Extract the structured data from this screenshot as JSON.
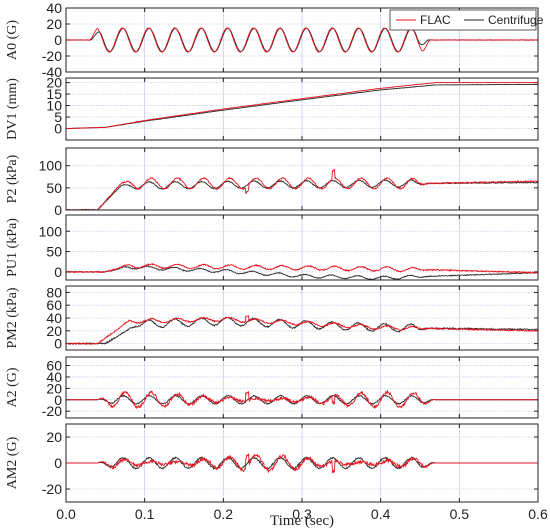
{
  "chart_data": {
    "type": "line",
    "xlabel": "Time (sec)",
    "xlim": [
      0,
      0.6
    ],
    "x_ticks": [
      "0.0",
      "0.1",
      "0.2",
      "0.3",
      "0.4",
      "0.5",
      "0.6"
    ],
    "grid": true,
    "legend": {
      "placement": "top-right",
      "entries": [
        "FLAC",
        "Centrifuge"
      ]
    },
    "colors": {
      "FLAC": "#e8141e",
      "Centrifuge": "#2a2a2a",
      "grid": "#c6cce8"
    },
    "panels": [
      {
        "ylabel": "A0 (G)",
        "ylim": [
          -40,
          40
        ],
        "y_ticks": [
          "40",
          "20",
          "0",
          "-20",
          "-40"
        ],
        "series": [
          {
            "name": "FLAC",
            "description": "sinusoidal input motion ~30 Hz, amplitude ~15 G from 0.03 to 0.46 s"
          },
          {
            "name": "Centrifuge",
            "description": "overlaps FLAC"
          }
        ]
      },
      {
        "ylabel": "DV1 (mm)",
        "ylim": [
          -5,
          22
        ],
        "y_ticks": [
          "20",
          "15",
          "10",
          "5",
          "0"
        ],
        "series": [
          {
            "name": "FLAC",
            "key_points": [
              [
                0.0,
                0
              ],
              [
                0.05,
                0.5
              ],
              [
                0.1,
                3.5
              ],
              [
                0.2,
                8.5
              ],
              [
                0.3,
                13
              ],
              [
                0.4,
                17.5
              ],
              [
                0.47,
                20
              ],
              [
                0.6,
                20
              ]
            ]
          },
          {
            "name": "Centrifuge",
            "key_points": [
              [
                0.0,
                0
              ],
              [
                0.05,
                0.5
              ],
              [
                0.1,
                3.2
              ],
              [
                0.2,
                8
              ],
              [
                0.3,
                12.5
              ],
              [
                0.4,
                16.8
              ],
              [
                0.47,
                19
              ],
              [
                0.6,
                19.2
              ]
            ]
          }
        ]
      },
      {
        "ylabel": "P2 (kPa)",
        "ylim": [
          0,
          140
        ],
        "y_ticks": [
          "100",
          "50",
          "0"
        ],
        "series": [
          {
            "name": "FLAC",
            "key_points": [
              [
                0.0,
                0
              ],
              [
                0.04,
                0
              ],
              [
                0.07,
                60
              ],
              [
                0.46,
                60
              ],
              [
                0.6,
                65
              ]
            ]
          },
          {
            "name": "Centrifuge",
            "key_points": [
              [
                0.0,
                0
              ],
              [
                0.04,
                0
              ],
              [
                0.07,
                55
              ],
              [
                0.46,
                60
              ],
              [
                0.6,
                62
              ]
            ]
          }
        ]
      },
      {
        "ylabel": "PU1 (kPa)",
        "ylim": [
          -20,
          140
        ],
        "y_ticks": [
          "100",
          "50",
          "0"
        ],
        "series": [
          {
            "name": "FLAC",
            "key_points": [
              [
                0.0,
                0
              ],
              [
                0.05,
                0
              ],
              [
                0.08,
                15
              ],
              [
                0.3,
                10
              ],
              [
                0.47,
                5
              ],
              [
                0.6,
                -2
              ]
            ]
          },
          {
            "name": "Centrifuge",
            "key_points": [
              [
                0.0,
                0
              ],
              [
                0.05,
                0
              ],
              [
                0.08,
                12
              ],
              [
                0.2,
                2
              ],
              [
                0.3,
                -10
              ],
              [
                0.4,
                -15
              ],
              [
                0.6,
                -2
              ]
            ]
          }
        ]
      },
      {
        "ylabel": "PM2 (kPa)",
        "ylim": [
          -10,
          90
        ],
        "y_ticks": [
          "80",
          "60",
          "40",
          "20",
          "0"
        ],
        "series": [
          {
            "name": "FLAC",
            "key_points": [
              [
                0.0,
                0
              ],
              [
                0.04,
                0
              ],
              [
                0.08,
                35
              ],
              [
                0.2,
                38
              ],
              [
                0.3,
                32
              ],
              [
                0.4,
                25
              ],
              [
                0.6,
                20
              ]
            ]
          },
          {
            "name": "Centrifuge",
            "key_points": [
              [
                0.0,
                0
              ],
              [
                0.05,
                0
              ],
              [
                0.09,
                30
              ],
              [
                0.2,
                35
              ],
              [
                0.3,
                30
              ],
              [
                0.4,
                25
              ],
              [
                0.6,
                22
              ]
            ]
          }
        ]
      },
      {
        "ylabel": "A2 (G)",
        "ylim": [
          -32,
          75
        ],
        "y_ticks": [
          "60",
          "40",
          "20",
          "0",
          "-20"
        ],
        "series": [
          {
            "name": "FLAC",
            "description": "oscillation about 0 with amplitude ~10-15 G between 0.05 and 0.46 s"
          },
          {
            "name": "Centrifuge",
            "description": "oscillation about 0 with amplitude ~8 G"
          }
        ]
      },
      {
        "ylabel": "AM2 (G)",
        "ylim": [
          -30,
          30
        ],
        "y_ticks": [
          "20",
          "0",
          "-20"
        ],
        "series": [
          {
            "name": "FLAC",
            "description": "oscillation about 0 with amplitude ~5-8 G, spikes near 0.23 and 0.34 s"
          },
          {
            "name": "Centrifuge",
            "description": "oscillation about 0 with amplitude ~5 G"
          }
        ]
      }
    ]
  }
}
